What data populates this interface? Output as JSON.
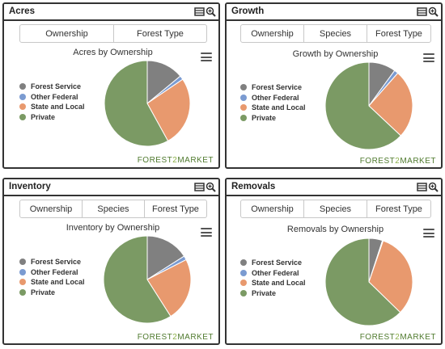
{
  "legend_labels": [
    "Forest Service",
    "Other Federal",
    "State and Local",
    "Private"
  ],
  "legend_colors": [
    "#808080",
    "#7b9bd1",
    "#e8996e",
    "#7b9a64"
  ],
  "logo": {
    "part1": "FOREST",
    "part2": "2",
    "part3": "MARKET"
  },
  "icons": [
    "table-icon",
    "zoom-icon",
    "menu-icon"
  ],
  "panels": [
    {
      "title": "Acres",
      "tabs": [
        "Ownership",
        "Forest Type"
      ],
      "chart_title": "Acres by Ownership",
      "chart_data": {
        "type": "pie",
        "title": "Acres by Ownership",
        "categories": [
          "Forest Service",
          "Other Federal",
          "State and Local",
          "Private"
        ],
        "values": [
          14.0,
          1.5,
          26.5,
          58.0
        ]
      }
    },
    {
      "title": "Growth",
      "tabs": [
        "Ownership",
        "Species",
        "Forest Type"
      ],
      "chart_title": "Growth by Ownership",
      "chart_data": {
        "type": "pie",
        "title": "Growth by Ownership",
        "categories": [
          "Forest Service",
          "Other Federal",
          "State and Local",
          "Private"
        ],
        "values": [
          10.0,
          1.5,
          25.5,
          63.0
        ]
      }
    },
    {
      "title": "Inventory",
      "tabs": [
        "Ownership",
        "Species",
        "Forest Type"
      ],
      "chart_title": "Inventory by Ownership",
      "chart_data": {
        "type": "pie",
        "title": "Inventory by Ownership",
        "categories": [
          "Forest Service",
          "Other Federal",
          "State and Local",
          "Private"
        ],
        "values": [
          16.0,
          1.5,
          23.5,
          59.0
        ]
      }
    },
    {
      "title": "Removals",
      "tabs": [
        "Ownership",
        "Species",
        "Forest Type"
      ],
      "chart_title": "Removals by Ownership",
      "chart_data": {
        "type": "pie",
        "title": "Removals by Ownership",
        "categories": [
          "Forest Service",
          "Other Federal",
          "State and Local",
          "Private"
        ],
        "values": [
          5.0,
          0.3,
          32.0,
          62.7
        ]
      }
    }
  ]
}
